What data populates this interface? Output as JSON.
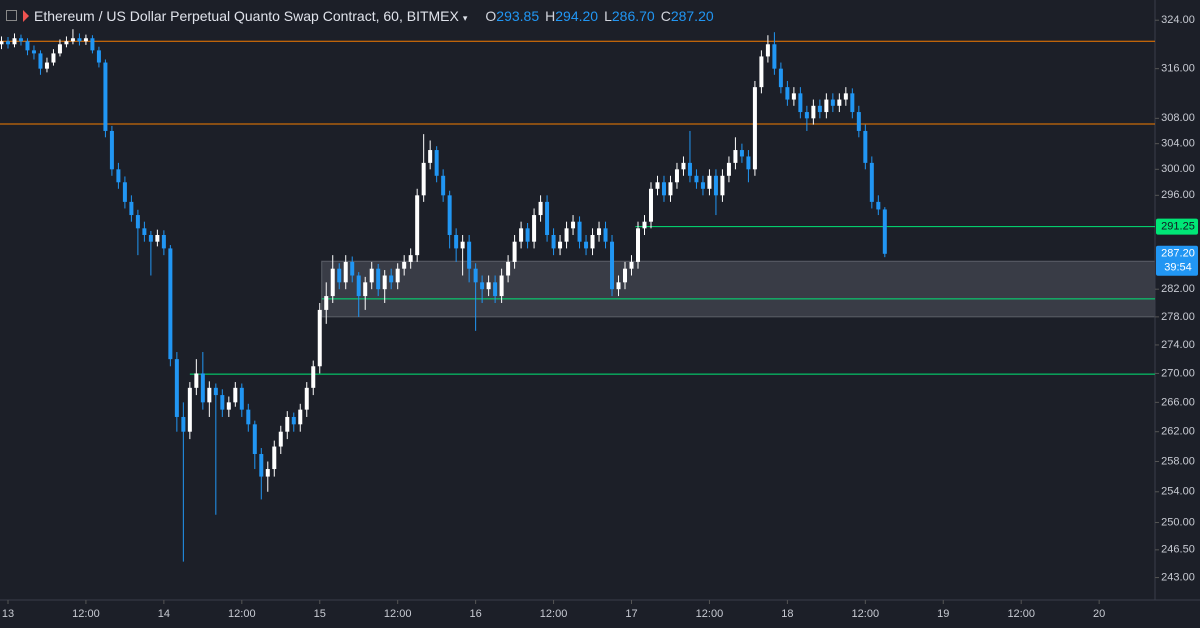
{
  "chart_data": {
    "type": "candlestick",
    "title": "Ethereum / US Dollar Perpetual Quanto Swap Contract, 60, BITMEX",
    "ohlc_names": [
      "O",
      "H",
      "L",
      "C"
    ],
    "last_labels": [
      "293.85",
      "294.20",
      "286.70",
      "287.20"
    ],
    "up_color": "#ffffff",
    "down_color": "#2196f3",
    "log_scale": true,
    "xlim": [
      -1.23,
      176.6
    ],
    "ylim": [
      240.2,
      327.4
    ],
    "xticks": [
      {
        "value": 0,
        "label": "13"
      },
      {
        "value": 12,
        "label": "12:00"
      },
      {
        "value": 24,
        "label": "14"
      },
      {
        "value": 36,
        "label": "12:00"
      },
      {
        "value": 48,
        "label": "15"
      },
      {
        "value": 60,
        "label": "12:00"
      },
      {
        "value": 72,
        "label": "16"
      },
      {
        "value": 84,
        "label": "12:00"
      },
      {
        "value": 96,
        "label": "17"
      },
      {
        "value": 108,
        "label": "12:00"
      },
      {
        "value": 120,
        "label": "18"
      },
      {
        "value": 132,
        "label": "12:00"
      },
      {
        "value": 144,
        "label": "19"
      },
      {
        "value": 156,
        "label": "12:00"
      },
      {
        "value": 168,
        "label": "20"
      }
    ],
    "yticks": [
      {
        "value": 324,
        "label": "324.00"
      },
      {
        "value": 316,
        "label": "316.00"
      },
      {
        "value": 308,
        "label": "308.00"
      },
      {
        "value": 304,
        "label": "304.00"
      },
      {
        "value": 300,
        "label": "300.00"
      },
      {
        "value": 296,
        "label": "296.00"
      },
      {
        "value": 282,
        "label": "282.00"
      },
      {
        "value": 278,
        "label": "278.00"
      },
      {
        "value": 274,
        "label": "274.00"
      },
      {
        "value": 270,
        "label": "270.00"
      },
      {
        "value": 266,
        "label": "266.00"
      },
      {
        "value": 262,
        "label": "262.00"
      },
      {
        "value": 258,
        "label": "258.00"
      },
      {
        "value": 254,
        "label": "254.00"
      },
      {
        "value": 250,
        "label": "250.00"
      },
      {
        "value": 246.5,
        "label": "246.50"
      },
      {
        "value": 243,
        "label": "243.00"
      }
    ],
    "levels": [
      {
        "value": 320.5,
        "color": "#f57c00",
        "from": -1.23
      },
      {
        "value": 307.1,
        "color": "#f57c00",
        "from": -1.23
      },
      {
        "value": 291.25,
        "color": "#00e676",
        "from": 96.6,
        "label": "291.25"
      },
      {
        "value": 280.6,
        "color": "#00e676",
        "from": 48.3
      },
      {
        "value": 269.9,
        "color": "#00e676",
        "from": 28
      }
    ],
    "zone": {
      "range": [
        278,
        286.1
      ],
      "from": 48.3,
      "color": "#5d606b"
    },
    "price_tag": {
      "value": 287.2,
      "label": "287.20",
      "timer": "39:54",
      "color": "#2196f3"
    },
    "x": [
      -1,
      0,
      1,
      2,
      3,
      4,
      5,
      6,
      7,
      8,
      9,
      10,
      11,
      12,
      13,
      14,
      15,
      16,
      17,
      18,
      19,
      20,
      21,
      22,
      23,
      24,
      25,
      26,
      27,
      28,
      29,
      30,
      31,
      32,
      33,
      34,
      35,
      36,
      37,
      38,
      39,
      40,
      41,
      42,
      43,
      44,
      45,
      46,
      47,
      48,
      49,
      50,
      51,
      52,
      53,
      54,
      55,
      56,
      57,
      58,
      59,
      60,
      61,
      62,
      63,
      64,
      65,
      66,
      67,
      68,
      69,
      70,
      71,
      72,
      73,
      74,
      75,
      76,
      77,
      78,
      79,
      80,
      81,
      82,
      83,
      84,
      85,
      86,
      87,
      88,
      89,
      90,
      91,
      92,
      93,
      94,
      95,
      96,
      97,
      98,
      99,
      100,
      101,
      102,
      103,
      104,
      105,
      106,
      107,
      108,
      109,
      110,
      111,
      112,
      113,
      114,
      115,
      116,
      117,
      118,
      119,
      120,
      121,
      122,
      123,
      124,
      125,
      126,
      127,
      128,
      129,
      130,
      131,
      132,
      133,
      134,
      135
    ],
    "ohlc": [
      [
        320,
        321.3,
        319.2,
        320.5
      ],
      [
        320.5,
        321.2,
        319.3,
        320
      ],
      [
        320,
        321.8,
        319.5,
        321
      ],
      [
        321,
        321.6,
        319.8,
        320.5
      ],
      [
        320.5,
        321,
        318.2,
        319
      ],
      [
        319,
        319.8,
        317.5,
        318.5
      ],
      [
        318.5,
        319,
        315,
        316
      ],
      [
        316,
        317.8,
        315.4,
        317
      ],
      [
        317,
        319.2,
        316.5,
        318.5
      ],
      [
        318.5,
        320.8,
        318,
        320
      ],
      [
        320,
        321.3,
        319.5,
        320.5
      ],
      [
        320.5,
        322.5,
        320,
        321
      ],
      [
        321,
        321.8,
        319.8,
        320.5
      ],
      [
        320.5,
        321.6,
        319.9,
        321
      ],
      [
        321,
        321.5,
        318.5,
        319
      ],
      [
        319,
        319.6,
        316.2,
        317
      ],
      [
        317,
        317.5,
        305,
        306
      ],
      [
        306,
        306.8,
        299,
        300
      ],
      [
        300,
        301,
        297,
        298
      ],
      [
        298,
        298.9,
        294,
        295
      ],
      [
        295,
        296,
        292,
        293
      ],
      [
        293,
        293.8,
        287,
        291
      ],
      [
        291,
        292,
        289,
        290
      ],
      [
        290,
        290.6,
        284,
        289
      ],
      [
        289,
        290.8,
        288.3,
        290
      ],
      [
        290,
        290.7,
        287,
        288
      ],
      [
        288,
        288.5,
        271,
        272
      ],
      [
        272,
        273,
        262,
        264
      ],
      [
        264,
        266,
        245,
        262
      ],
      [
        262,
        268.8,
        261,
        268
      ],
      [
        268,
        272,
        267,
        270
      ],
      [
        270,
        273,
        265,
        266
      ],
      [
        266,
        268.9,
        264,
        268
      ],
      [
        268,
        268.6,
        251,
        267
      ],
      [
        267,
        267.8,
        264,
        265
      ],
      [
        265,
        266.8,
        264,
        266
      ],
      [
        266,
        268.8,
        265.4,
        268
      ],
      [
        268,
        268.6,
        264,
        265
      ],
      [
        265,
        265.8,
        262,
        263
      ],
      [
        263,
        263.5,
        257,
        259
      ],
      [
        259,
        259.8,
        253,
        256
      ],
      [
        256,
        258,
        254,
        257
      ],
      [
        257,
        260.8,
        256,
        260
      ],
      [
        260,
        262.8,
        259,
        262
      ],
      [
        262,
        264.8,
        261,
        264
      ],
      [
        264,
        264.6,
        262,
        263
      ],
      [
        263,
        265.8,
        262,
        265
      ],
      [
        265,
        268.8,
        264,
        268
      ],
      [
        268,
        271.8,
        267,
        271
      ],
      [
        271,
        280,
        270,
        279
      ],
      [
        279,
        283,
        277,
        281
      ],
      [
        281,
        287,
        280,
        285
      ],
      [
        285,
        285.8,
        282,
        283
      ],
      [
        283,
        287,
        282,
        286
      ],
      [
        286,
        286.8,
        283,
        284
      ],
      [
        284,
        284.5,
        278,
        281
      ],
      [
        281,
        283.8,
        279,
        283
      ],
      [
        283,
        286,
        282,
        285
      ],
      [
        285,
        285.7,
        281,
        282
      ],
      [
        282,
        284.8,
        280,
        284
      ],
      [
        284,
        285,
        282,
        283
      ],
      [
        283,
        285.8,
        282,
        285
      ],
      [
        285,
        287,
        284,
        286
      ],
      [
        286,
        288,
        285,
        287
      ],
      [
        287,
        297,
        286,
        296
      ],
      [
        296,
        305.5,
        295,
        301
      ],
      [
        301,
        304.5,
        300,
        303
      ],
      [
        303,
        303.6,
        298,
        299
      ],
      [
        299,
        300,
        295,
        296
      ],
      [
        296,
        296.7,
        288,
        290
      ],
      [
        290,
        291,
        286,
        288
      ],
      [
        288,
        290,
        284,
        289
      ],
      [
        289,
        290,
        283,
        285
      ],
      [
        285,
        285.8,
        276,
        283
      ],
      [
        283,
        284,
        280,
        282
      ],
      [
        282,
        284,
        281,
        283
      ],
      [
        283,
        284,
        280,
        281
      ],
      [
        281,
        285,
        280,
        284
      ],
      [
        284,
        287,
        283,
        286
      ],
      [
        286,
        290,
        285,
        289
      ],
      [
        289,
        292,
        288,
        291
      ],
      [
        291,
        291.8,
        288,
        289
      ],
      [
        289,
        294,
        288,
        293
      ],
      [
        293,
        296,
        292,
        295
      ],
      [
        295,
        296,
        289,
        290
      ],
      [
        290,
        291,
        287,
        288
      ],
      [
        288,
        290,
        287,
        289
      ],
      [
        289,
        292,
        288,
        291
      ],
      [
        291,
        293,
        290,
        292
      ],
      [
        292,
        292.8,
        288,
        289
      ],
      [
        289,
        290,
        287,
        288
      ],
      [
        288,
        291,
        287,
        290
      ],
      [
        290,
        292,
        289,
        291
      ],
      [
        291,
        292,
        288,
        289
      ],
      [
        289,
        290,
        281,
        282
      ],
      [
        282,
        284,
        281,
        283
      ],
      [
        283,
        286,
        282,
        285
      ],
      [
        285,
        287,
        284,
        286
      ],
      [
        286,
        292,
        285,
        291
      ],
      [
        291,
        293,
        290,
        292
      ],
      [
        292,
        298,
        291,
        297
      ],
      [
        297,
        299,
        296,
        298
      ],
      [
        298,
        299,
        295,
        296
      ],
      [
        296,
        299,
        295,
        298
      ],
      [
        298,
        301,
        297,
        300
      ],
      [
        300,
        302,
        299,
        301
      ],
      [
        301,
        306,
        298,
        299
      ],
      [
        299,
        300,
        297,
        298
      ],
      [
        298,
        299,
        296,
        297
      ],
      [
        297,
        300,
        296,
        299
      ],
      [
        299,
        300,
        293,
        296
      ],
      [
        296,
        300,
        295,
        299
      ],
      [
        299,
        302,
        298,
        301
      ],
      [
        301,
        305,
        300,
        303
      ],
      [
        303,
        304,
        301,
        302
      ],
      [
        302,
        303,
        298,
        300
      ],
      [
        300,
        314,
        299,
        313
      ],
      [
        313,
        319,
        312,
        318
      ],
      [
        318,
        321.5,
        317,
        320
      ],
      [
        320,
        322,
        315,
        316
      ],
      [
        316,
        317,
        312,
        313
      ],
      [
        313,
        314,
        310,
        311
      ],
      [
        311,
        313,
        310,
        312
      ],
      [
        312,
        313,
        308,
        309
      ],
      [
        309,
        310,
        306,
        308
      ],
      [
        308,
        311,
        307,
        310
      ],
      [
        310,
        311,
        308,
        309
      ],
      [
        309,
        312,
        308,
        311
      ],
      [
        311,
        312,
        309,
        310
      ],
      [
        310,
        312,
        309,
        311
      ],
      [
        311,
        313,
        310,
        312
      ],
      [
        312,
        312.8,
        308,
        309
      ],
      [
        309,
        310,
        305,
        306
      ],
      [
        306,
        307,
        300,
        301
      ],
      [
        301,
        302,
        294,
        295
      ],
      [
        295,
        296,
        293,
        293.85
      ],
      [
        293.85,
        294.2,
        286.7,
        287.2
      ]
    ]
  }
}
